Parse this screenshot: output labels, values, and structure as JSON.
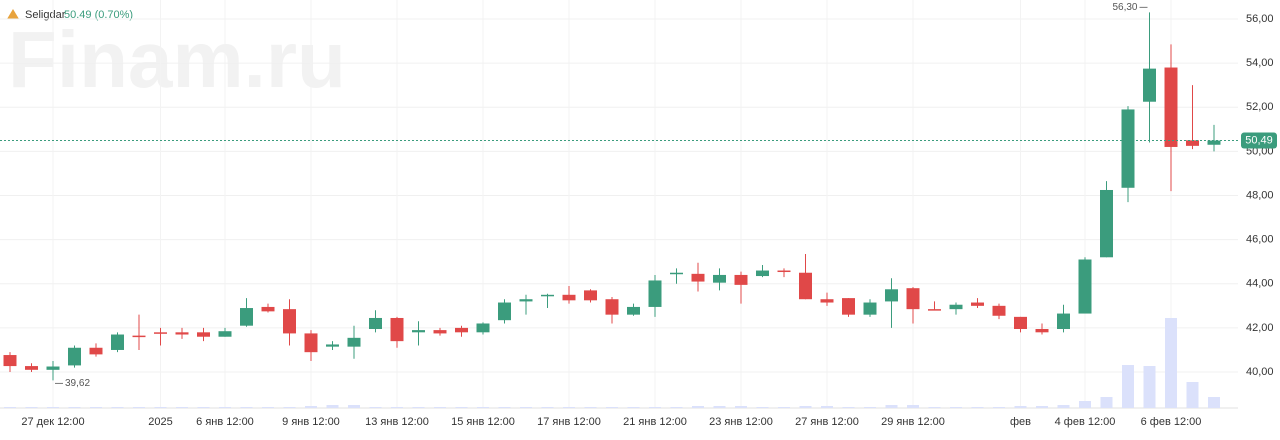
{
  "header": {
    "symbol": "Seligdar",
    "quote": "50.49 (0.70%)"
  },
  "watermark": "Finam.ru",
  "chart_data": {
    "type": "candlestick",
    "categories": [
      null,
      null,
      "27 дек 12:00",
      null,
      null,
      null,
      null,
      "2025",
      null,
      null,
      "6 янв 12:00",
      null,
      null,
      null,
      "9 янв 12:00",
      null,
      null,
      null,
      "13 янв 12:00",
      null,
      null,
      null,
      "15 янв 12:00",
      null,
      null,
      null,
      "17 янв 12:00",
      null,
      null,
      null,
      "21 янв 12:00",
      null,
      null,
      null,
      "23 янв 12:00",
      null,
      null,
      null,
      "27 янв 12:00",
      null,
      null,
      null,
      "29 янв 12:00",
      null,
      null,
      null,
      null,
      "фев",
      null,
      null,
      "4 фев 12:00",
      null,
      null,
      null,
      "6 фев 12:00",
      null,
      null
    ],
    "open": [
      40.77,
      40.27,
      40.1,
      40.3,
      41.1,
      41.0,
      41.65,
      41.8,
      41.8,
      41.8,
      41.6,
      42.1,
      42.95,
      42.85,
      41.75,
      41.15,
      41.15,
      41.95,
      42.45,
      41.8,
      41.9,
      42.0,
      41.8,
      42.35,
      43.2,
      43.45,
      43.5,
      43.7,
      43.3,
      42.6,
      42.95,
      44.45,
      44.45,
      44.05,
      44.4,
      44.35,
      44.6,
      44.5,
      43.3,
      43.35,
      42.6,
      43.2,
      43.8,
      42.85,
      42.85,
      43.15,
      43.0,
      42.5,
      41.95,
      41.95,
      42.65,
      45.2,
      48.35,
      52.25,
      53.8,
      50.5,
      50.3
    ],
    "high": [
      40.9,
      40.4,
      40.5,
      41.2,
      41.3,
      41.8,
      42.6,
      42.0,
      42.0,
      42.0,
      42.0,
      43.35,
      43.1,
      43.3,
      41.9,
      41.4,
      42.1,
      42.8,
      42.5,
      42.3,
      42.0,
      42.1,
      42.25,
      43.3,
      43.5,
      43.55,
      43.9,
      43.75,
      43.4,
      43.1,
      44.4,
      44.7,
      44.95,
      44.7,
      44.55,
      44.85,
      44.7,
      45.35,
      43.6,
      43.35,
      43.3,
      44.25,
      43.85,
      43.2,
      43.15,
      43.35,
      43.1,
      42.5,
      42.2,
      43.05,
      45.2,
      48.65,
      52.05,
      56.3,
      54.85,
      53.0,
      51.2
    ],
    "low": [
      40.0,
      40.0,
      39.62,
      40.2,
      40.7,
      40.9,
      41.0,
      41.2,
      41.5,
      41.4,
      41.6,
      42.05,
      42.7,
      41.2,
      40.5,
      41.0,
      40.6,
      41.8,
      41.1,
      41.2,
      41.65,
      41.6,
      41.7,
      42.2,
      42.6,
      42.9,
      43.1,
      43.15,
      42.2,
      42.55,
      42.5,
      44.0,
      43.65,
      43.7,
      43.1,
      44.3,
      44.3,
      43.3,
      43.0,
      42.5,
      42.5,
      42.0,
      42.2,
      42.8,
      42.6,
      42.9,
      42.4,
      41.8,
      41.7,
      41.8,
      42.65,
      45.2,
      47.7,
      50.4,
      48.2,
      50.1,
      50.0
    ],
    "close": [
      40.27,
      40.1,
      40.25,
      41.1,
      40.8,
      41.7,
      41.6,
      41.75,
      41.7,
      41.6,
      41.85,
      42.9,
      42.75,
      41.75,
      40.9,
      41.25,
      41.55,
      42.45,
      41.4,
      41.9,
      41.75,
      41.8,
      42.2,
      43.15,
      43.3,
      43.5,
      43.25,
      43.25,
      42.6,
      42.95,
      44.15,
      44.5,
      44.1,
      44.4,
      43.95,
      44.6,
      44.55,
      43.3,
      43.15,
      42.6,
      43.15,
      43.75,
      42.85,
      42.82,
      43.05,
      43.0,
      42.55,
      41.95,
      41.8,
      42.65,
      45.1,
      48.25,
      51.9,
      53.75,
      50.2,
      50.25,
      50.49
    ],
    "volume": [
      1,
      1,
      1,
      1,
      1,
      1,
      1,
      1,
      1,
      1,
      1,
      1,
      1,
      1,
      2,
      3,
      3,
      1,
      1,
      1,
      1,
      1,
      1,
      1,
      1,
      1,
      1,
      1,
      1,
      1,
      1,
      1,
      2,
      2,
      2,
      1,
      1,
      2,
      2,
      1,
      1,
      3,
      3,
      1,
      1,
      1,
      1,
      2,
      2,
      3,
      7,
      11,
      43,
      42,
      90,
      26,
      11
    ],
    "up_color": "#3b9c7d",
    "down_color": "#e04848",
    "volume_color": "#dbe1fb",
    "ylim": [
      38.37,
      56.86
    ],
    "yticks": [
      {
        "value": 40,
        "label": "40,00"
      },
      {
        "value": 42,
        "label": "42,00"
      },
      {
        "value": 44,
        "label": "44,00"
      },
      {
        "value": 46,
        "label": "46,00"
      },
      {
        "value": 48,
        "label": "48,00"
      },
      {
        "value": 50,
        "label": "50,00"
      },
      {
        "value": 52,
        "label": "52,00"
      },
      {
        "value": 54,
        "label": "54,00"
      },
      {
        "value": 56,
        "label": "56,00"
      }
    ],
    "grid": true,
    "max_label": {
      "value": 56.3,
      "label": "56,30"
    },
    "min_label": {
      "value": 39.62,
      "label": "39,62"
    },
    "last_price": {
      "value": 50.49,
      "label": "50,49"
    }
  }
}
